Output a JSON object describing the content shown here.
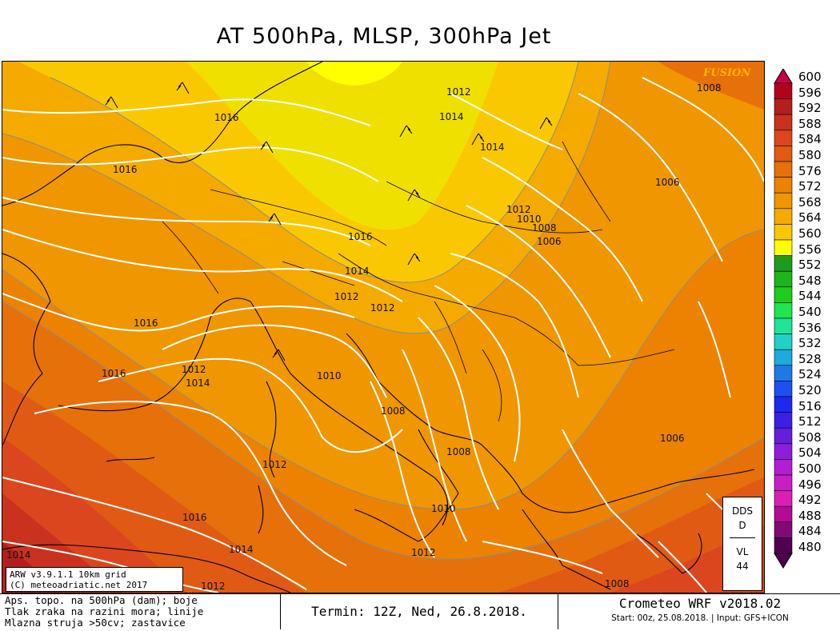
{
  "title": "AT 500hPa, MLSP, 300hPa Jet",
  "brand": "FUSION",
  "pressure_labels": [
    "1012",
    "1014",
    "1008",
    "1016",
    "1016",
    "1014",
    "1006",
    "1012",
    "1010",
    "1008",
    "1006",
    "1016",
    "1014",
    "1012",
    "1012",
    "1016",
    "1012",
    "1014",
    "1016",
    "1010",
    "1008",
    "1012",
    "1008",
    "1006",
    "1010",
    "1016",
    "1014",
    "1014",
    "1012",
    "1012",
    "1008"
  ],
  "legend": {
    "values": [
      "600",
      "596",
      "592",
      "588",
      "584",
      "580",
      "576",
      "572",
      "568",
      "564",
      "560",
      "556",
      "552",
      "548",
      "544",
      "540",
      "536",
      "532",
      "528",
      "524",
      "520",
      "516",
      "512",
      "508",
      "504",
      "500",
      "496",
      "492",
      "488",
      "484",
      "480"
    ],
    "colors": [
      "#c8004a",
      "#b4001e",
      "#b41e1e",
      "#c8321e",
      "#dc461e",
      "#e05a14",
      "#e6700a",
      "#ec8200",
      "#f09600",
      "#f5aa00",
      "#fac800",
      "#ffff00",
      "#1e9b1e",
      "#1eb41e",
      "#1ecd1e",
      "#1ee650",
      "#1ee696",
      "#1ed2c8",
      "#1eaadc",
      "#1e78e6",
      "#1e50f0",
      "#1e28f0",
      "#3c1ee6",
      "#641edc",
      "#8c1edc",
      "#b41ed2",
      "#c81ec8",
      "#dc1eb4",
      "#b40a96",
      "#820a78",
      "#500050"
    ]
  },
  "model_box": {
    "line1": "ARW v3.9.1.1 10km grid",
    "line2": "(C) meteoadriatic.net 2017"
  },
  "dds_box": {
    "a": "DDS",
    "b": "D",
    "c": "VL",
    "d": "44"
  },
  "footer": {
    "left1": "Aps. topo. na 500hPa (dam); boje",
    "left2": "Tlak zraka na razini mora; linije",
    "left3": "Mlazna struja >50cv; zastavice",
    "termin": "Termin: 12Z, Ned, 26.8.2018.",
    "model": "Crometeo WRF v2018.02",
    "start": "Start: 00z, 25.08.2018. | Input: GFS+ICON"
  }
}
